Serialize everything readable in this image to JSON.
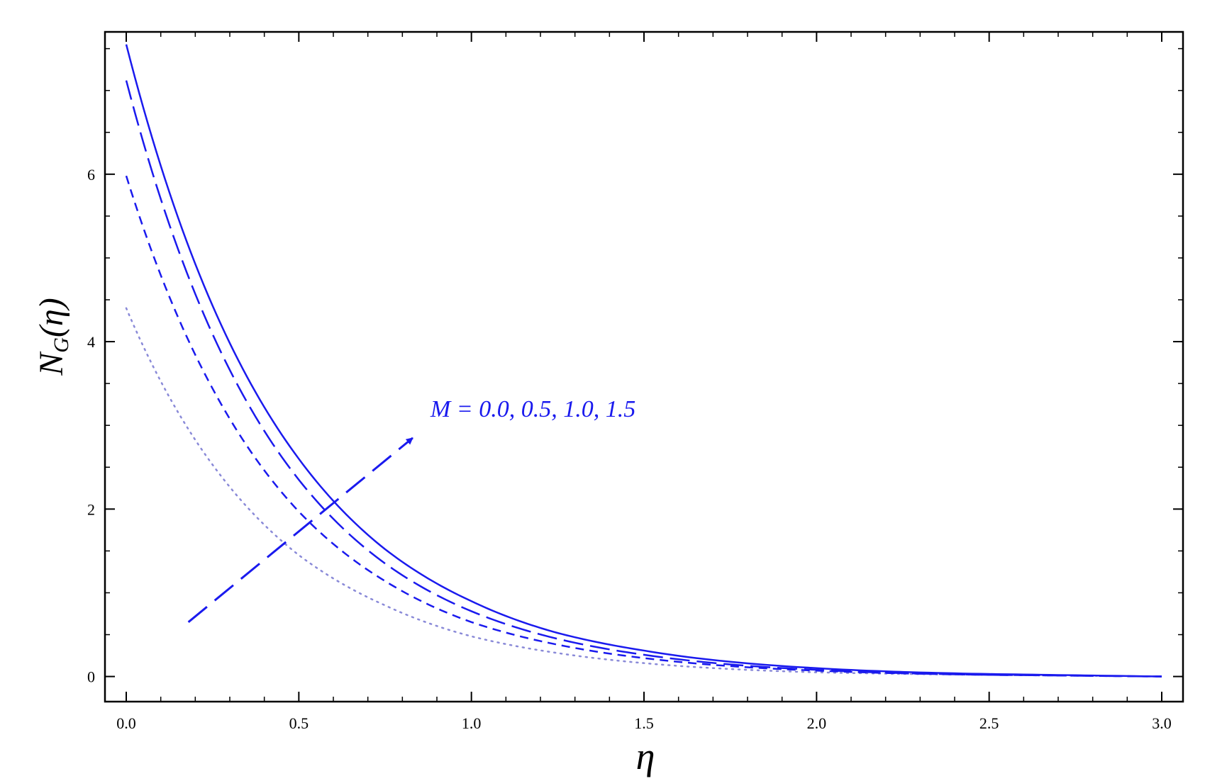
{
  "chart_data": {
    "type": "line",
    "title": "",
    "xlabel": "η",
    "ylabel": {
      "main": "N",
      "subscript": "G",
      "argument": "(η)"
    },
    "xlim": [
      0.0,
      3.0
    ],
    "ylim": [
      -0.3,
      7.7
    ],
    "xticks": [
      "0.0",
      "0.5",
      "1.0",
      "1.5",
      "2.0",
      "2.5",
      "3.0"
    ],
    "yticks": [
      "0",
      "2",
      "4",
      "6"
    ],
    "grid": false,
    "annotation": {
      "text": "M = 0.0, 0.5, 1.0, 1.5",
      "arrow_from": [
        0.18,
        0.65
      ],
      "arrow_to": [
        0.83,
        2.85
      ]
    },
    "colors": {
      "line": "#1a1aee",
      "dotted": "#8a8ad8",
      "frame": "#000000"
    },
    "series": [
      {
        "style": "dotted",
        "x": [
          0,
          0.25,
          0.5,
          0.75,
          1.0,
          1.25,
          1.5,
          2.0,
          2.5,
          3.0
        ],
        "values": [
          4.4,
          2.53,
          1.45,
          0.85,
          0.48,
          0.28,
          0.16,
          0.05,
          0.02,
          0.0
        ]
      },
      {
        "style": "dashed-short",
        "x": [
          0,
          0.25,
          0.5,
          0.75,
          1.0,
          1.25,
          1.5,
          2.0,
          2.5,
          3.0
        ],
        "values": [
          5.98,
          3.44,
          1.97,
          1.14,
          0.65,
          0.38,
          0.22,
          0.07,
          0.02,
          0.0
        ]
      },
      {
        "style": "dashed-long",
        "x": [
          0,
          0.25,
          0.5,
          0.75,
          1.0,
          1.25,
          1.5,
          2.0,
          2.5,
          3.0
        ],
        "values": [
          7.12,
          4.09,
          2.35,
          1.35,
          0.78,
          0.45,
          0.26,
          0.08,
          0.02,
          0.0
        ]
      },
      {
        "style": "solid",
        "x": [
          0,
          0.25,
          0.5,
          0.75,
          1.0,
          1.25,
          1.5,
          2.0,
          2.5,
          3.0
        ],
        "values": [
          7.55,
          4.43,
          2.6,
          1.52,
          0.9,
          0.52,
          0.31,
          0.1,
          0.03,
          0.0
        ]
      }
    ]
  }
}
